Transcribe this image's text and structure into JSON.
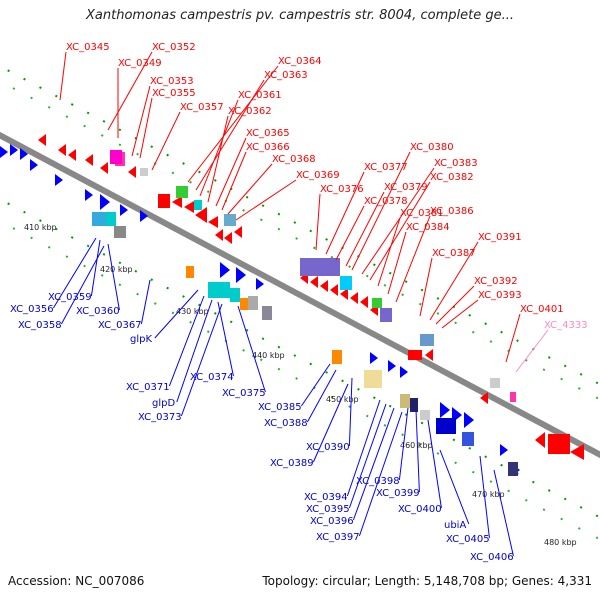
{
  "title": "Xanthomonas campestris pv. campestris str. 8004, complete ge...",
  "footer": {
    "accession": "Accession: NC_007086",
    "summary": "Topology: circular; Length: 5,148,708 bp; Genes: 4,331"
  },
  "colors": {
    "forward": "#ff0000",
    "reverse": "#0000ff",
    "backbone": "#888888",
    "tick": "#009900",
    "pseudo_label": "#ff88cc",
    "label_text": "#0000cc"
  },
  "kbp_marks": [
    {
      "label": "410 kbp"
    },
    {
      "label": "420 kbp"
    },
    {
      "label": "430 kbp"
    },
    {
      "label": "440 kbp"
    },
    {
      "label": "450 kbp"
    },
    {
      "label": "460 kbp"
    },
    {
      "label": "470 kbp"
    },
    {
      "label": "480 kbp"
    }
  ],
  "forward_labels": [
    "XC_0345",
    "XC_0352",
    "XC_0349",
    "XC_0353",
    "XC_0355",
    "XC_0357",
    "XC_0364",
    "XC_0363",
    "XC_0361",
    "XC_0362",
    "XC_0365",
    "XC_0366",
    "XC_0368",
    "XC_0369",
    "XC_0376",
    "XC_0377",
    "XC_0378",
    "XC_0379",
    "XC_0380",
    "XC_0383",
    "XC_0382",
    "XC_0381",
    "XC_0384",
    "XC_0386",
    "XC_0387",
    "XC_0391",
    "XC_0392",
    "XC_0393",
    "XC_0401"
  ],
  "pseudo_labels": [
    "XC_4333"
  ],
  "reverse_labels": [
    "XC_0356",
    "XC_0359",
    "XC_0360",
    "XC_0358",
    "XC_0367",
    "glpK",
    "XC_0371",
    "XC_0374",
    "glpD",
    "XC_0373",
    "XC_0375",
    "XC_0385",
    "XC_0388",
    "XC_0390",
    "XC_0389",
    "XC_0394",
    "XC_0398",
    "XC_0395",
    "XC_0399",
    "XC_0396",
    "XC_0400",
    "XC_0397",
    "ubiA",
    "XC_0405",
    "XC_0406"
  ]
}
